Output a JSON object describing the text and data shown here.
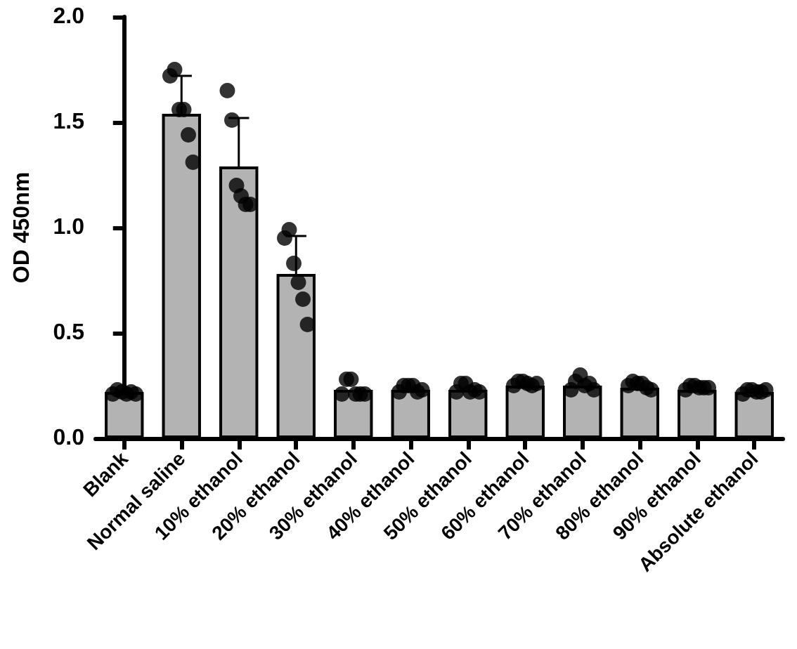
{
  "chart_data": {
    "type": "bar",
    "ylabel": "OD 450nm",
    "categories": [
      "Blank",
      "Normal saline",
      "10% ethanol",
      "20% ethanol",
      "30% ethanol",
      "40% ethanol",
      "50% ethanol",
      "60% ethanol",
      "70% ethanol",
      "80% ethanol",
      "90% ethanol",
      "Absolute ethanol"
    ],
    "series": [
      {
        "color": "#b3b3b3",
        "values": [
          0.22,
          1.54,
          1.29,
          0.78,
          0.23,
          0.23,
          0.23,
          0.25,
          0.25,
          0.24,
          0.23,
          0.22
        ],
        "errors": [
          null,
          0.18,
          0.23,
          0.18,
          null,
          null,
          null,
          null,
          null,
          null,
          null,
          null
        ]
      },
      {
        "type": "scatter",
        "color": "#000000",
        "marker": "circle",
        "x": [
          "Blank",
          "Blank",
          "Blank",
          "Blank",
          "Blank",
          "Blank",
          "Normal saline",
          "Normal saline",
          "Normal saline",
          "Normal saline",
          "Normal saline",
          "Normal saline",
          "10% ethanol",
          "10% ethanol",
          "10% ethanol",
          "10% ethanol",
          "10% ethanol",
          "10% ethanol",
          "20% ethanol",
          "20% ethanol",
          "20% ethanol",
          "20% ethanol",
          "20% ethanol",
          "20% ethanol",
          "30% ethanol",
          "30% ethanol",
          "30% ethanol",
          "30% ethanol",
          "30% ethanol",
          "30% ethanol",
          "40% ethanol",
          "40% ethanol",
          "40% ethanol",
          "40% ethanol",
          "40% ethanol",
          "40% ethanol",
          "50% ethanol",
          "50% ethanol",
          "50% ethanol",
          "50% ethanol",
          "50% ethanol",
          "50% ethanol",
          "60% ethanol",
          "60% ethanol",
          "60% ethanol",
          "60% ethanol",
          "60% ethanol",
          "60% ethanol",
          "70% ethanol",
          "70% ethanol",
          "70% ethanol",
          "70% ethanol",
          "70% ethanol",
          "70% ethanol",
          "80% ethanol",
          "80% ethanol",
          "80% ethanol",
          "80% ethanol",
          "80% ethanol",
          "80% ethanol",
          "90% ethanol",
          "90% ethanol",
          "90% ethanol",
          "90% ethanol",
          "90% ethanol",
          "90% ethanol",
          "Absolute ethanol",
          "Absolute ethanol",
          "Absolute ethanol",
          "Absolute ethanol",
          "Absolute ethanol",
          "Absolute ethanol"
        ],
        "values": [
          0.21,
          0.23,
          0.22,
          0.21,
          0.22,
          0.21,
          1.72,
          1.75,
          1.56,
          1.56,
          1.44,
          1.31,
          1.65,
          1.51,
          1.2,
          1.15,
          1.11,
          1.11,
          0.95,
          0.99,
          0.83,
          0.74,
          0.66,
          0.54,
          0.21,
          0.28,
          0.28,
          0.21,
          0.21,
          0.21,
          0.22,
          0.25,
          0.25,
          0.25,
          0.22,
          0.23,
          0.22,
          0.26,
          0.26,
          0.22,
          0.23,
          0.22,
          0.25,
          0.27,
          0.27,
          0.26,
          0.25,
          0.26,
          0.23,
          0.27,
          0.3,
          0.25,
          0.26,
          0.23,
          0.25,
          0.27,
          0.26,
          0.26,
          0.24,
          0.23,
          0.23,
          0.25,
          0.25,
          0.24,
          0.24,
          0.24,
          0.21,
          0.23,
          0.23,
          0.22,
          0.22,
          0.23
        ]
      }
    ],
    "ylim": [
      0,
      2
    ],
    "yticks": [
      {
        "value": 0,
        "label": "0.0"
      },
      {
        "value": 0.5,
        "label": "0.5"
      },
      {
        "value": 1,
        "label": "1.0"
      },
      {
        "value": 1.5,
        "label": "1.5"
      },
      {
        "value": 2,
        "label": "2.0"
      }
    ],
    "grid": false
  }
}
